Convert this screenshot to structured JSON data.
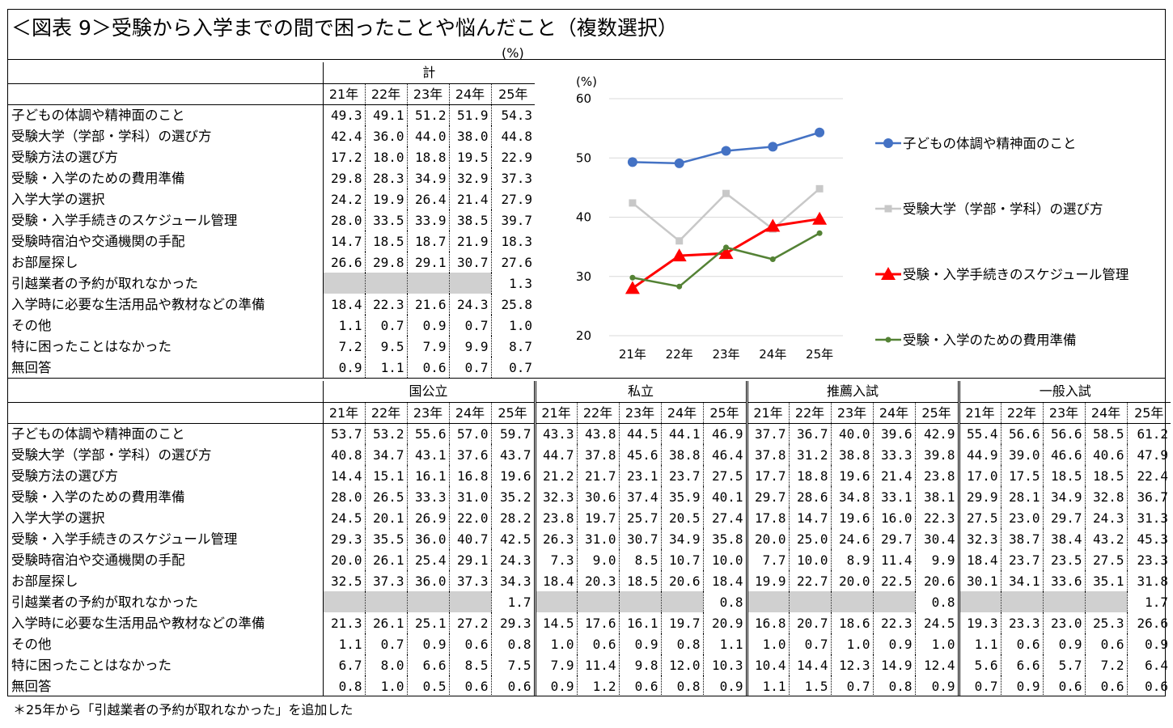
{
  "title": "＜図表 9＞受験から入学までの間で困ったことや悩んだこと（複数選択）",
  "unit": "(%)",
  "footnote": "＊25年から「引越業者の予約が取れなかった」を追加した",
  "years": [
    "21年",
    "22年",
    "23年",
    "24年",
    "25年"
  ],
  "rows": [
    "子どもの体調や精神面のこと",
    "受験大学（学部・学科）の選び方",
    "受験方法の選び方",
    "受験・入学のための費用準備",
    "入学大学の選択",
    "受験・入学手続きのスケジュール管理",
    "受験時宿泊や交通機関の手配",
    "お部屋探し",
    "引越業者の予約が取れなかった",
    "入学時に必要な生活用品や教材などの準備",
    "その他",
    "特に困ったことはなかった",
    "無回答"
  ],
  "total": {
    "name": "計",
    "values": [
      [
        "49.3",
        "49.1",
        "51.2",
        "51.9",
        "54.3"
      ],
      [
        "42.4",
        "36.0",
        "44.0",
        "38.0",
        "44.8"
      ],
      [
        "17.2",
        "18.0",
        "18.8",
        "19.5",
        "22.9"
      ],
      [
        "29.8",
        "28.3",
        "34.9",
        "32.9",
        "37.3"
      ],
      [
        "24.2",
        "19.9",
        "26.4",
        "21.4",
        "27.9"
      ],
      [
        "28.0",
        "33.5",
        "33.9",
        "38.5",
        "39.7"
      ],
      [
        "14.7",
        "18.5",
        "18.7",
        "21.9",
        "18.3"
      ],
      [
        "26.6",
        "29.8",
        "29.1",
        "30.7",
        "27.6"
      ],
      [
        "",
        "",
        "",
        "",
        "1.3"
      ],
      [
        "18.4",
        "22.3",
        "21.6",
        "24.3",
        "25.8"
      ],
      [
        "1.1",
        "0.7",
        "0.9",
        "0.7",
        "1.0"
      ],
      [
        "7.2",
        "9.5",
        "7.9",
        "9.9",
        "8.7"
      ],
      [
        "0.9",
        "1.1",
        "0.6",
        "0.7",
        "0.7"
      ]
    ]
  },
  "groups": [
    {
      "name": "国公立",
      "values": [
        [
          "53.7",
          "53.2",
          "55.6",
          "57.0",
          "59.7"
        ],
        [
          "40.8",
          "34.7",
          "43.1",
          "37.6",
          "43.7"
        ],
        [
          "14.4",
          "15.1",
          "16.1",
          "16.8",
          "19.6"
        ],
        [
          "28.0",
          "26.5",
          "33.3",
          "31.0",
          "35.2"
        ],
        [
          "24.5",
          "20.1",
          "26.9",
          "22.0",
          "28.2"
        ],
        [
          "29.3",
          "35.5",
          "36.0",
          "40.7",
          "42.5"
        ],
        [
          "20.0",
          "26.1",
          "25.4",
          "29.1",
          "24.3"
        ],
        [
          "32.5",
          "37.3",
          "36.0",
          "37.3",
          "34.3"
        ],
        [
          "",
          "",
          "",
          "",
          "1.7"
        ],
        [
          "21.3",
          "26.1",
          "25.1",
          "27.2",
          "29.3"
        ],
        [
          "1.1",
          "0.7",
          "0.9",
          "0.6",
          "0.8"
        ],
        [
          "6.7",
          "8.0",
          "6.6",
          "8.5",
          "7.5"
        ],
        [
          "0.8",
          "1.0",
          "0.5",
          "0.6",
          "0.6"
        ]
      ]
    },
    {
      "name": "私立",
      "values": [
        [
          "43.3",
          "43.8",
          "44.5",
          "44.1",
          "46.9"
        ],
        [
          "44.7",
          "37.8",
          "45.6",
          "38.8",
          "46.4"
        ],
        [
          "21.2",
          "21.7",
          "23.1",
          "23.7",
          "27.5"
        ],
        [
          "32.3",
          "30.6",
          "37.4",
          "35.9",
          "40.1"
        ],
        [
          "23.8",
          "19.7",
          "25.7",
          "20.5",
          "27.4"
        ],
        [
          "26.3",
          "31.0",
          "30.7",
          "34.9",
          "35.8"
        ],
        [
          "7.3",
          "9.0",
          "8.5",
          "10.7",
          "10.0"
        ],
        [
          "18.4",
          "20.3",
          "18.5",
          "20.6",
          "18.4"
        ],
        [
          "",
          "",
          "",
          "",
          "0.8"
        ],
        [
          "14.5",
          "17.6",
          "16.1",
          "19.7",
          "20.9"
        ],
        [
          "1.0",
          "0.6",
          "0.9",
          "0.8",
          "1.1"
        ],
        [
          "7.9",
          "11.4",
          "9.8",
          "12.0",
          "10.3"
        ],
        [
          "0.9",
          "1.2",
          "0.6",
          "0.8",
          "0.9"
        ]
      ]
    },
    {
      "name": "推薦入試",
      "values": [
        [
          "37.7",
          "36.7",
          "40.0",
          "39.6",
          "42.9"
        ],
        [
          "37.8",
          "31.2",
          "38.8",
          "33.3",
          "39.8"
        ],
        [
          "17.7",
          "18.8",
          "19.6",
          "21.4",
          "23.8"
        ],
        [
          "29.7",
          "28.6",
          "34.8",
          "33.1",
          "38.1"
        ],
        [
          "17.8",
          "14.7",
          "19.6",
          "16.0",
          "22.3"
        ],
        [
          "20.0",
          "25.0",
          "24.6",
          "29.7",
          "30.4"
        ],
        [
          "7.7",
          "10.0",
          "8.9",
          "11.4",
          "9.9"
        ],
        [
          "19.9",
          "22.7",
          "20.0",
          "22.5",
          "20.6"
        ],
        [
          "",
          "",
          "",
          "",
          "0.8"
        ],
        [
          "16.8",
          "20.7",
          "18.6",
          "22.3",
          "24.5"
        ],
        [
          "1.0",
          "0.7",
          "1.0",
          "0.9",
          "1.0"
        ],
        [
          "10.4",
          "14.4",
          "12.3",
          "14.9",
          "12.4"
        ],
        [
          "1.1",
          "1.5",
          "0.7",
          "0.8",
          "0.9"
        ]
      ]
    },
    {
      "name": "一般入試",
      "values": [
        [
          "55.4",
          "56.6",
          "56.6",
          "58.5",
          "61.2"
        ],
        [
          "44.9",
          "39.0",
          "46.6",
          "40.6",
          "47.9"
        ],
        [
          "17.0",
          "17.5",
          "18.5",
          "18.5",
          "22.4"
        ],
        [
          "29.9",
          "28.1",
          "34.9",
          "32.8",
          "36.7"
        ],
        [
          "27.5",
          "23.0",
          "29.7",
          "24.3",
          "31.3"
        ],
        [
          "32.3",
          "38.7",
          "38.4",
          "43.2",
          "45.3"
        ],
        [
          "18.4",
          "23.7",
          "23.5",
          "27.5",
          "23.3"
        ],
        [
          "30.1",
          "34.1",
          "33.6",
          "35.1",
          "31.8"
        ],
        [
          "",
          "",
          "",
          "",
          "1.7"
        ],
        [
          "19.3",
          "23.3",
          "23.0",
          "25.3",
          "26.6"
        ],
        [
          "1.1",
          "0.6",
          "0.9",
          "0.6",
          "0.9"
        ],
        [
          "5.6",
          "6.6",
          "5.7",
          "7.2",
          "6.4"
        ],
        [
          "0.7",
          "0.9",
          "0.6",
          "0.6",
          "0.6"
        ]
      ]
    }
  ],
  "chart_data": {
    "type": "line",
    "ylabel": "(%)",
    "ylim": [
      20,
      60
    ],
    "yticks": [
      "20",
      "30",
      "40",
      "50",
      "60"
    ],
    "x": [
      "21年",
      "22年",
      "23年",
      "24年",
      "25年"
    ],
    "grid": true,
    "legend": "right",
    "series": [
      {
        "name": "子どもの体調や精神面のこと",
        "color": "#4472c4",
        "marker": "circle",
        "values": [
          49.3,
          49.1,
          51.2,
          51.9,
          54.3
        ]
      },
      {
        "name": "受験大学（学部・学科）の選び方",
        "color": "#c8c8c8",
        "marker": "square",
        "values": [
          42.4,
          36.0,
          44.0,
          38.0,
          44.8
        ]
      },
      {
        "name": "受験・入学手続きのスケジュール管理",
        "color": "#ff0000",
        "marker": "triangle",
        "values": [
          28.0,
          33.5,
          33.9,
          38.5,
          39.7
        ]
      },
      {
        "name": "受験・入学のための費用準備",
        "color": "#548235",
        "marker": "dot",
        "values": [
          29.8,
          28.3,
          34.9,
          32.9,
          37.3
        ]
      }
    ]
  }
}
